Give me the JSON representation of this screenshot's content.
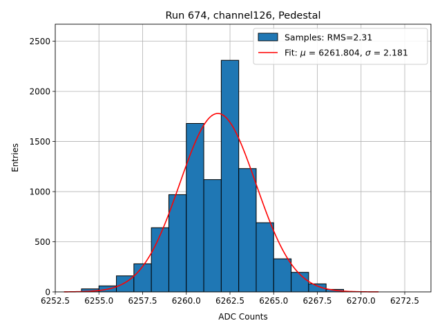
{
  "chart_data": {
    "type": "bar",
    "title": "Run 674, channel126, Pedestal",
    "xlabel": "ADC Counts",
    "ylabel": "Entries",
    "xlim": [
      6252.5,
      6274.0
    ],
    "ylim": [
      0,
      2670
    ],
    "xticks": [
      6252.5,
      6255.0,
      6257.5,
      6260.0,
      6262.5,
      6265.0,
      6267.5,
      6270.0,
      6272.5
    ],
    "xtick_labels": [
      "6252.5",
      "6255.0",
      "6257.5",
      "6260.0",
      "6262.5",
      "6265.0",
      "6267.5",
      "6270.0",
      "6272.5"
    ],
    "yticks": [
      0,
      500,
      1000,
      1500,
      2000,
      2500
    ],
    "ytick_labels": [
      "0",
      "500",
      "1000",
      "1500",
      "2000",
      "2500"
    ],
    "grid": true,
    "legend_position": "top-right",
    "series": [
      {
        "name": "Samples: RMS=2.31",
        "kind": "histogram",
        "color": "#1f77b4",
        "edge_color": "#000000",
        "bins": [
          {
            "x0": 6254.0,
            "x1": 6255.0,
            "value": 30
          },
          {
            "x0": 6255.0,
            "x1": 6256.0,
            "value": 60
          },
          {
            "x0": 6256.0,
            "x1": 6257.0,
            "value": 160
          },
          {
            "x0": 6257.0,
            "x1": 6258.0,
            "value": 280
          },
          {
            "x0": 6258.0,
            "x1": 6259.0,
            "value": 640
          },
          {
            "x0": 6259.0,
            "x1": 6260.0,
            "value": 970
          },
          {
            "x0": 6260.0,
            "x1": 6261.0,
            "value": 1680
          },
          {
            "x0": 6261.0,
            "x1": 6262.0,
            "value": 1120
          },
          {
            "x0": 6262.0,
            "x1": 6263.0,
            "value": 2310
          },
          {
            "x0": 6263.0,
            "x1": 6264.0,
            "value": 1230
          },
          {
            "x0": 6264.0,
            "x1": 6265.0,
            "value": 690
          },
          {
            "x0": 6265.0,
            "x1": 6266.0,
            "value": 330
          },
          {
            "x0": 6266.0,
            "x1": 6267.0,
            "value": 195
          },
          {
            "x0": 6267.0,
            "x1": 6268.0,
            "value": 80
          },
          {
            "x0": 6268.0,
            "x1": 6269.0,
            "value": 25
          }
        ]
      },
      {
        "name": "Fit: μ = 6261.804, σ = 2.181",
        "name_parts": {
          "prefix": "Fit: ",
          "mu_symbol": "μ",
          "mu_text": " = 6261.804, ",
          "sigma_symbol": "σ",
          "sigma_text": " = 2.181"
        },
        "kind": "gaussian_fit",
        "color": "#ff0000",
        "mu": 6261.804,
        "sigma": 2.181,
        "amplitude": 1780,
        "x_range": [
          6253.0,
          6271.0
        ]
      }
    ]
  }
}
